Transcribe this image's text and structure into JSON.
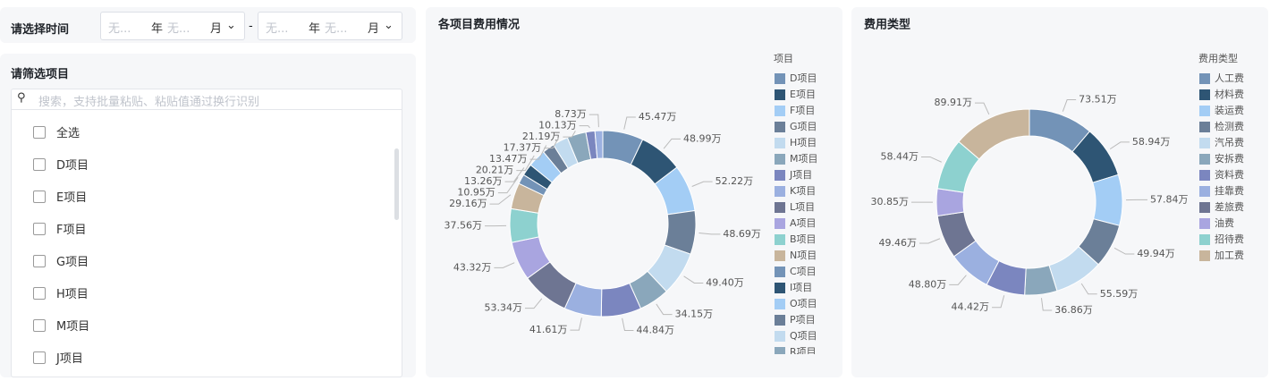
{
  "filters": {
    "time_label": "请选择时间",
    "date_start": {
      "year_placeholder": "无...",
      "year_unit": "年",
      "month_placeholder": "无...",
      "month_unit": "月"
    },
    "separator": "-",
    "date_end": {
      "year_placeholder": "无...",
      "year_unit": "年",
      "month_placeholder": "无...",
      "month_unit": "月"
    }
  },
  "project_filter": {
    "title": "请筛选项目",
    "search_placeholder": "搜索，支持批量粘贴、粘贴值通过换行识别",
    "options": [
      "全选",
      "D项目",
      "E项目",
      "F项目",
      "G项目",
      "H项目",
      "M项目",
      "J项目"
    ]
  },
  "chart_data": [
    {
      "type": "pie",
      "title": "各项目费用情况",
      "legend_title": "项目",
      "categories": [
        "D项目",
        "E项目",
        "F项目",
        "G项目",
        "H项目",
        "M项目",
        "J项目",
        "K项目",
        "L项目",
        "A项目",
        "B项目",
        "N项目",
        "C项目",
        "I项目",
        "O项目",
        "P项目",
        "Q项目",
        "R项目",
        null,
        null
      ],
      "values": [
        45.47,
        48.99,
        52.22,
        48.69,
        49.4,
        34.15,
        44.84,
        41.61,
        53.34,
        43.32,
        37.56,
        29.16,
        10.95,
        13.26,
        20.21,
        13.47,
        17.37,
        21.19,
        10.13,
        8.73
      ],
      "value_labels": [
        "45.47万",
        "48.99万",
        "52.22万",
        "48.69万",
        "49.40万",
        "34.15万",
        "44.84万",
        "41.61万",
        "53.34万",
        "43.32万",
        "37.56万",
        "29.16万",
        "10.95万",
        "13.26万",
        "20.21万",
        "13.47万",
        "17.37万",
        "21.19万",
        "10.13万",
        "8.73万"
      ],
      "colors": [
        "#7393b7",
        "#2e5574",
        "#a3cdf5",
        "#6b7f98",
        "#c2dbef",
        "#8aa7bb",
        "#7b86bf",
        "#9bb0e0",
        "#6e7592",
        "#a9a5e0",
        "#8dd1cf",
        "#c8b59c",
        "#7393b7",
        "#2e5574",
        "#a3cdf5",
        "#6b7f98",
        "#c2dbef",
        "#8aa7bb",
        "#7b86bf",
        "#9bb0e0"
      ]
    },
    {
      "type": "pie",
      "title": "费用类型",
      "legend_title": "费用类型",
      "categories": [
        "人工费",
        "材料费",
        "装运费",
        "检测费",
        "汽吊费",
        "安拆费",
        "资料费",
        "挂靠费",
        "差旅费",
        "油费",
        "招待费",
        "加工费"
      ],
      "values": [
        73.51,
        58.94,
        57.84,
        49.94,
        55.59,
        36.86,
        44.42,
        48.8,
        49.46,
        30.85,
        58.44,
        89.91
      ],
      "value_labels": [
        "73.51万",
        "58.94万",
        "57.84万",
        "49.94万",
        "55.59万",
        "36.86万",
        "44.42万",
        "48.80万",
        "49.46万",
        "30.85万",
        "58.44万",
        "89.91万"
      ],
      "colors": [
        "#7393b7",
        "#2e5574",
        "#a3cdf5",
        "#6b7f98",
        "#c2dbef",
        "#8aa7bb",
        "#7b86bf",
        "#9bb0e0",
        "#6e7592",
        "#a9a5e0",
        "#8dd1cf",
        "#c8b59c"
      ]
    }
  ]
}
